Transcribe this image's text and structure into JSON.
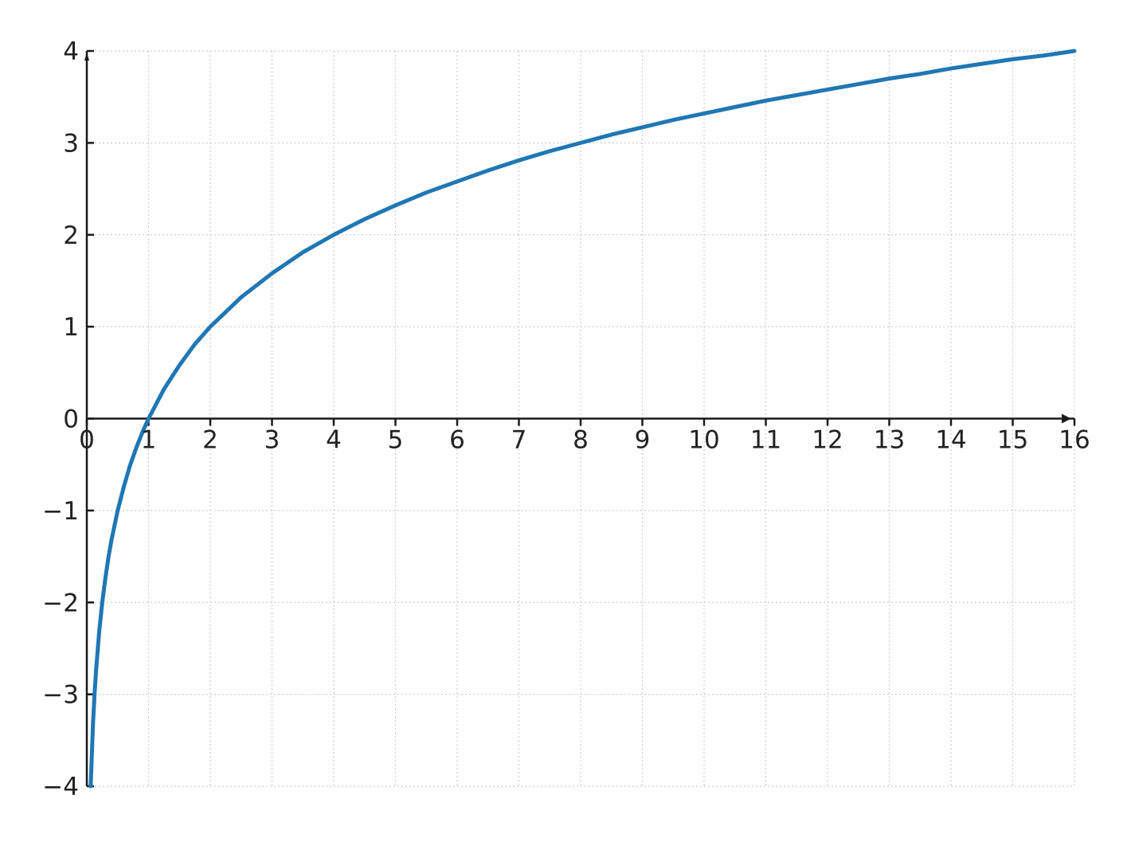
{
  "chart_data": {
    "type": "line",
    "title": "",
    "xlabel": "",
    "ylabel": "",
    "xlim": [
      0,
      16
    ],
    "ylim": [
      -4,
      4
    ],
    "x_ticks": [
      0,
      1,
      2,
      3,
      4,
      5,
      6,
      7,
      8,
      9,
      10,
      11,
      12,
      13,
      14,
      15,
      16
    ],
    "y_ticks": [
      -4,
      -3,
      -2,
      -1,
      0,
      1,
      2,
      3,
      4
    ],
    "x_tick_labels": [
      "0",
      "1",
      "2",
      "3",
      "4",
      "5",
      "6",
      "7",
      "8",
      "9",
      "10",
      "11",
      "12",
      "13",
      "14",
      "15",
      "16"
    ],
    "y_tick_labels": [
      "−4",
      "−3",
      "−2",
      "−1",
      "0",
      "1",
      "2",
      "3",
      "4"
    ],
    "grid": true,
    "series": [
      {
        "color": "#1f77b4",
        "x": [
          0.0625,
          0.1,
          0.125,
          0.15,
          0.2,
          0.25,
          0.3,
          0.35,
          0.4,
          0.5,
          0.6,
          0.7,
          0.8,
          0.9,
          1,
          1.25,
          1.5,
          1.75,
          2,
          2.5,
          3,
          3.5,
          4,
          4.5,
          5,
          5.5,
          6,
          6.5,
          7,
          7.5,
          8,
          8.5,
          9,
          9.5,
          10,
          10.5,
          11,
          11.5,
          12,
          12.5,
          13,
          13.5,
          14,
          14.5,
          15,
          15.5,
          16
        ],
        "y": [
          -4.0,
          -3.32,
          -3.0,
          -2.74,
          -2.32,
          -2.0,
          -1.74,
          -1.51,
          -1.32,
          -1.0,
          -0.74,
          -0.51,
          -0.32,
          -0.15,
          0.0,
          0.32,
          0.58,
          0.81,
          1.0,
          1.32,
          1.58,
          1.81,
          2.0,
          2.17,
          2.32,
          2.46,
          2.58,
          2.7,
          2.81,
          2.91,
          3.0,
          3.09,
          3.17,
          3.25,
          3.32,
          3.39,
          3.46,
          3.52,
          3.58,
          3.64,
          3.7,
          3.75,
          3.81,
          3.86,
          3.91,
          3.95,
          4.0
        ]
      }
    ]
  }
}
